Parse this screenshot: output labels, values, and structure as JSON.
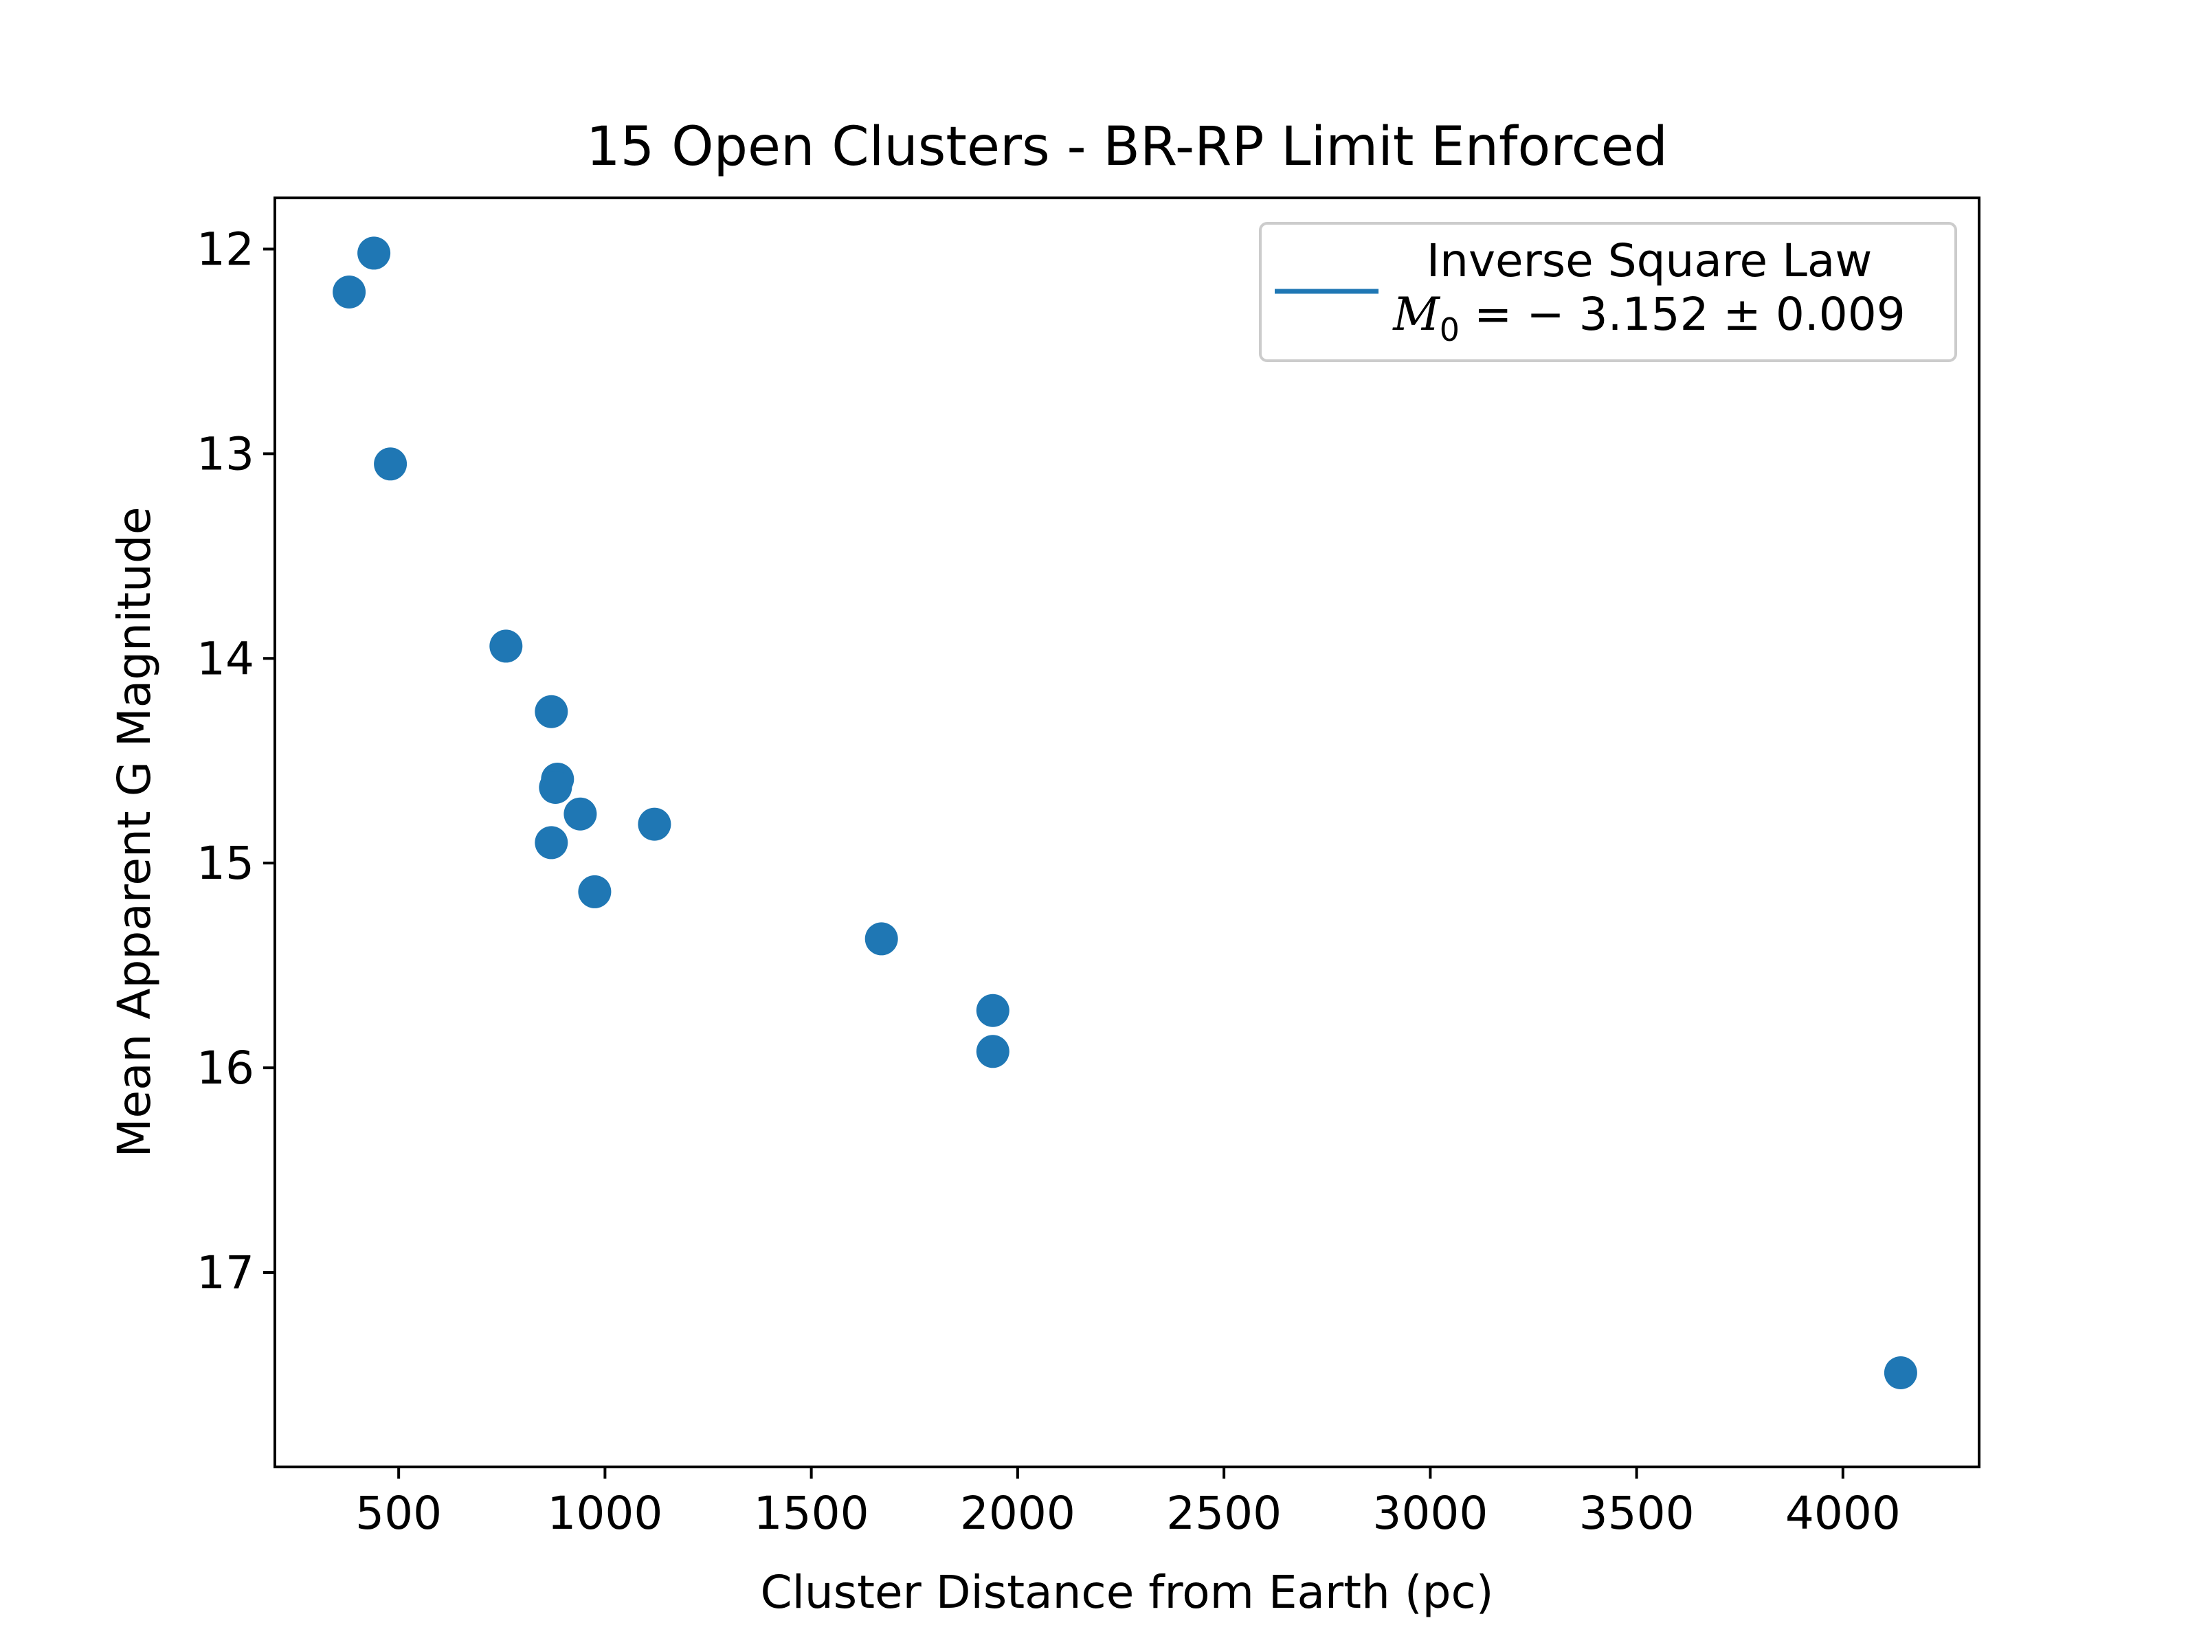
{
  "chart_data": {
    "type": "scatter",
    "title": "15 Open Clusters - BR-RP Limit Enforced",
    "xlabel": "Cluster Distance from Earth (pc)",
    "ylabel": "Mean Apparent G Magnitude",
    "xlim": [
      200,
      4330
    ],
    "ylim": [
      17.95,
      11.75
    ],
    "y_inverted": true,
    "grid": false,
    "x_ticks": [
      500,
      1000,
      1500,
      2000,
      2500,
      3000,
      3500,
      4000
    ],
    "y_ticks": [
      12,
      13,
      14,
      15,
      16,
      17
    ],
    "legend": {
      "placement": "top-right",
      "label_line1": "Inverse Square Law",
      "label_line2": "M_0 = −3.152 ± 0.009",
      "math_symbol": "M",
      "math_subscript": "0",
      "math_rest": " = − 3.152 ± 0.009"
    },
    "series": [
      {
        "kind": "points",
        "color": "#1f77b4",
        "points": [
          {
            "x": 380,
            "y": 12.21
          },
          {
            "x": 440,
            "y": 12.02
          },
          {
            "x": 480,
            "y": 13.05
          },
          {
            "x": 760,
            "y": 13.94
          },
          {
            "x": 870,
            "y": 14.26
          },
          {
            "x": 885,
            "y": 14.59
          },
          {
            "x": 880,
            "y": 14.63
          },
          {
            "x": 940,
            "y": 14.76
          },
          {
            "x": 870,
            "y": 14.9
          },
          {
            "x": 975,
            "y": 15.14
          },
          {
            "x": 1120,
            "y": 14.81
          },
          {
            "x": 1670,
            "y": 15.37
          },
          {
            "x": 1940,
            "y": 15.72
          },
          {
            "x": 1940,
            "y": 15.92
          },
          {
            "x": 4140,
            "y": 17.49
          }
        ]
      },
      {
        "name": "Inverse Square Law",
        "kind": "fit",
        "color": "#1f77b4",
        "absolute_magnitude": -3.152,
        "x_range": [
          380,
          4140
        ]
      }
    ]
  }
}
